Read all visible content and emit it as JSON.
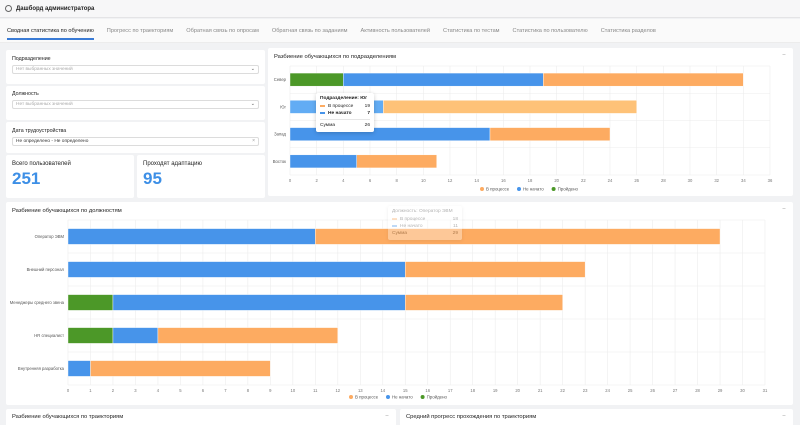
{
  "header": {
    "title": "Дашборд администратора",
    "icon": "gear-icon"
  },
  "tabs": [
    {
      "label": "Сводная статистика по обучению",
      "active": true
    },
    {
      "label": "Прогресс по траекториям"
    },
    {
      "label": "Обратная связь по опросам"
    },
    {
      "label": "Обратная связь по заданиям"
    },
    {
      "label": "Активность пользователей"
    },
    {
      "label": "Статистика по тестам"
    },
    {
      "label": "Статистика по пользователю"
    },
    {
      "label": "Статистика разделов"
    }
  ],
  "filters": {
    "department": {
      "label": "Подразделение",
      "placeholder": "Нет выбранных значений"
    },
    "position": {
      "label": "Должность",
      "placeholder": "Нет выбранных значений"
    },
    "hire_date": {
      "label": "Дата трудоустройства",
      "value": "Не определено - Не определено"
    }
  },
  "kpis": {
    "total_users": {
      "label": "Всего пользователей",
      "value": "251"
    },
    "adaptation": {
      "label": "Проходят адаптацию",
      "value": "95"
    }
  },
  "colors": {
    "in_progress": "#fdab61",
    "not_started": "#4794ea",
    "passed": "#4c9828",
    "highlight_in_progress": "#fec278",
    "highlight_not_started": "#62acf4"
  },
  "chart_data": [
    {
      "id": "departments",
      "type": "bar",
      "orientation": "horizontal",
      "stacked": true,
      "title": "Разбиение обучающихся по подразделениям",
      "categories": [
        "Север",
        "Юг",
        "Запад",
        "Восток"
      ],
      "series": [
        {
          "name": "Пройдено",
          "key": "passed",
          "values": [
            4,
            0,
            0,
            0
          ]
        },
        {
          "name": "Не начато",
          "key": "not_started",
          "values": [
            15,
            7,
            15,
            5
          ]
        },
        {
          "name": "В процессе",
          "key": "in_progress",
          "values": [
            15,
            19,
            9,
            6
          ]
        }
      ],
      "xlim": [
        0,
        36
      ],
      "xticks": [
        0,
        2,
        4,
        6,
        8,
        10,
        12,
        14,
        16,
        18,
        20,
        22,
        24,
        26,
        28,
        30,
        32,
        34,
        36
      ],
      "legend": [
        "В процессе",
        "Не начато",
        "Пройдено"
      ],
      "legend_position": "bottom",
      "grid": true,
      "highlighted_category": "Юг",
      "tooltip": {
        "title": "Подразделение: Юг",
        "rows": [
          {
            "label": "В процессе",
            "value": "19"
          },
          {
            "label": "Не начато",
            "value": "7"
          }
        ],
        "total_label": "Сумма",
        "total_value": "26"
      }
    },
    {
      "id": "positions",
      "type": "bar",
      "orientation": "horizontal",
      "stacked": true,
      "title": "Разбиение обучающихся по должностям",
      "categories": [
        "Оператор ЭВМ",
        "Внешний персонал",
        "Менеджеры среднего звена",
        "HR специалист",
        "Внутренняя разработка"
      ],
      "series": [
        {
          "name": "Пройдено",
          "key": "passed",
          "values": [
            0,
            0,
            2,
            2,
            0
          ]
        },
        {
          "name": "Не начато",
          "key": "not_started",
          "values": [
            11,
            15,
            13,
            2,
            1
          ]
        },
        {
          "name": "В процессе",
          "key": "in_progress",
          "values": [
            18,
            8,
            7,
            8,
            8
          ]
        }
      ],
      "xlim": [
        0,
        31
      ],
      "xticks": [
        0,
        1,
        2,
        3,
        4,
        5,
        6,
        7,
        8,
        9,
        10,
        11,
        12,
        13,
        14,
        15,
        16,
        17,
        18,
        19,
        20,
        21,
        22,
        23,
        24,
        25,
        26,
        27,
        28,
        29,
        30,
        31
      ],
      "legend": [
        "В процессе",
        "Не начато",
        "Пройдено"
      ],
      "legend_position": "bottom",
      "grid": true,
      "tooltip": {
        "title": "Должность: Оператор ЭВМ",
        "rows": [
          {
            "label": "В процессе",
            "value": "18"
          },
          {
            "label": "Не начато",
            "value": "11"
          }
        ],
        "total_label": "Сумма",
        "total_value": "29"
      }
    }
  ],
  "bottom_cards": {
    "trajectories": {
      "title": "Разбиение обучающихся по траекториям"
    },
    "avg_progress": {
      "title": "Средний прогресс прохождения по траекториям"
    }
  }
}
